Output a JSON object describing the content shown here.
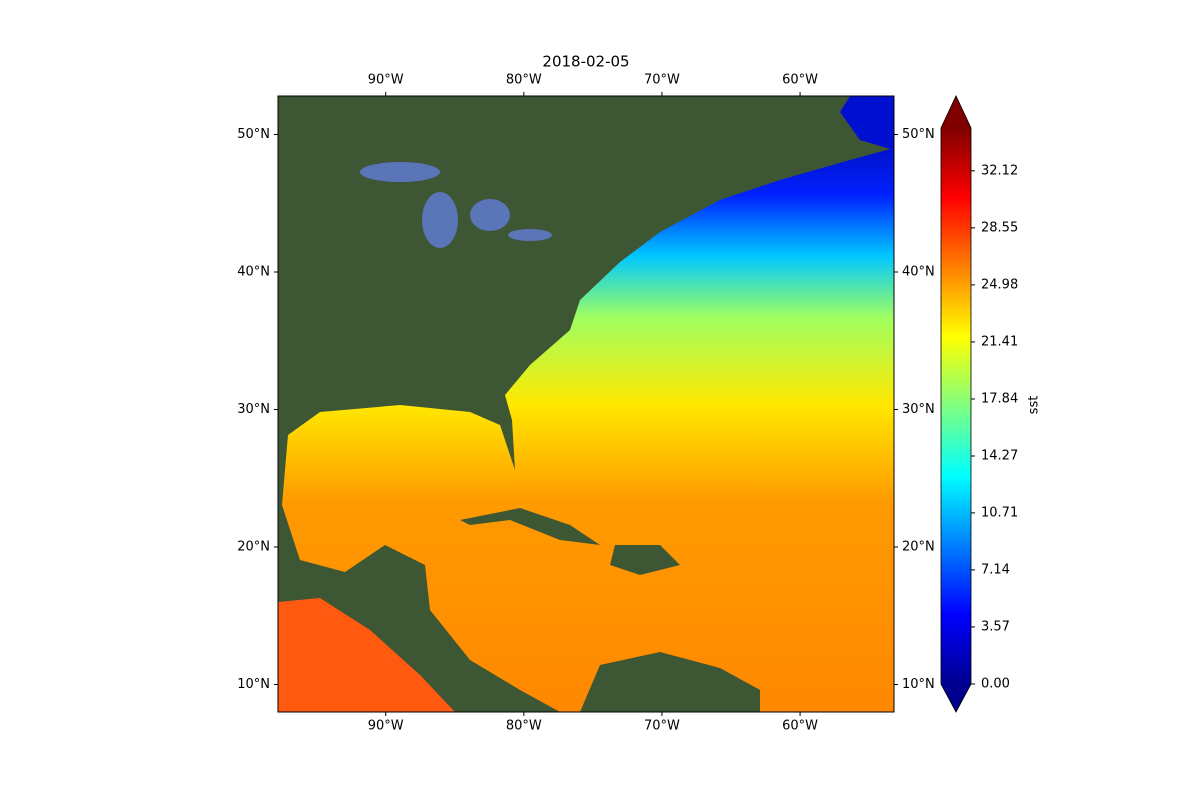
{
  "chart_data": {
    "type": "map",
    "title": "2018-02-05",
    "xlim": [
      -97.8,
      -53.2
    ],
    "ylim": [
      8.0,
      52.8
    ],
    "xticks": [
      {
        "value": -90,
        "label": "90°W"
      },
      {
        "value": -80,
        "label": "80°W"
      },
      {
        "value": -70,
        "label": "70°W"
      },
      {
        "value": -60,
        "label": "60°W"
      }
    ],
    "yticks": [
      {
        "value": 10,
        "label": "10°N"
      },
      {
        "value": 20,
        "label": "20°N"
      },
      {
        "value": 30,
        "label": "30°N"
      },
      {
        "value": 40,
        "label": "40°N"
      },
      {
        "value": 50,
        "label": "50°N"
      }
    ],
    "colorbar": {
      "label": "sst",
      "colormap": "jet",
      "clim": [
        0,
        34.8
      ],
      "ticks": [
        {
          "value": 0,
          "label": "0.00"
        },
        3.57,
        7.14,
        10.71,
        14.27,
        17.84,
        21.41,
        24.98,
        28.55,
        32.12
      ]
    }
  }
}
